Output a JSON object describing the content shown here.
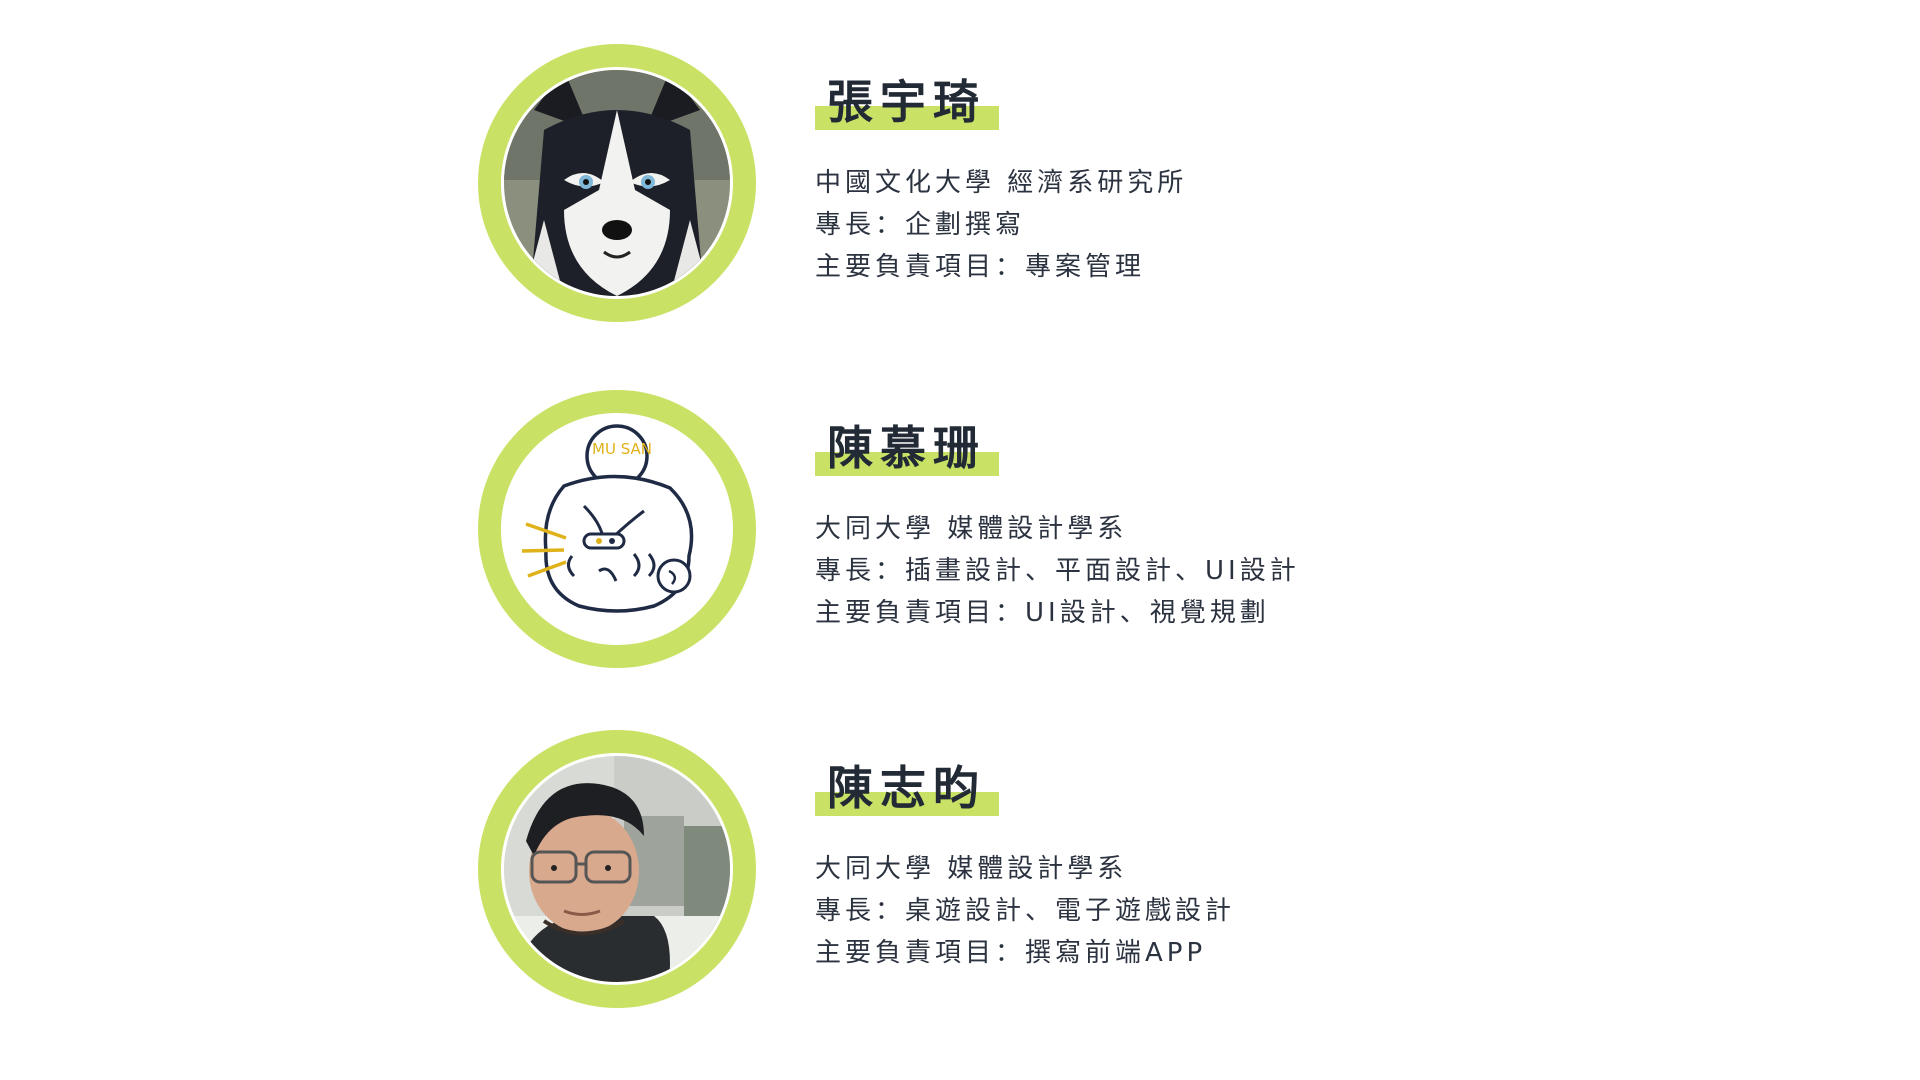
{
  "members": [
    {
      "name": "張宇琦",
      "avatar_icon": "husky-dog-photo-icon",
      "lines": [
        "中國文化大學 經濟系研究所",
        "專長：企劃撰寫",
        "主要負責項目：專案管理"
      ]
    },
    {
      "name": "陳慕珊",
      "avatar_icon": "cartoon-character-icon",
      "avatar_text": "MU SAN",
      "lines": [
        "大同大學 媒體設計學系",
        "專長：插畫設計、平面設計、UI設計",
        "主要負責項目：UI設計、視覺規劃"
      ]
    },
    {
      "name": "陳志昀",
      "avatar_icon": "person-photo-icon",
      "lines": [
        "大同大學 媒體設計學系",
        "專長：桌遊設計、電子遊戲設計",
        "主要負責項目：撰寫前端APP"
      ]
    }
  ],
  "colors": {
    "accent": "#c9e265",
    "text": "#2c3340",
    "name_text": "#222a35",
    "background": "#ffffff"
  }
}
